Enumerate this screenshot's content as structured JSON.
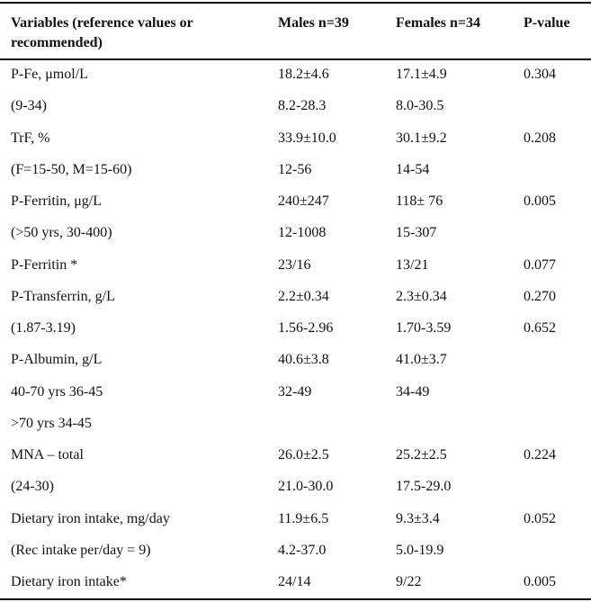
{
  "headers": {
    "variables": "Variables (reference values or recommended)",
    "males": "Males n=39",
    "females": "Females n=34",
    "pvalue": "P-value"
  },
  "rows": [
    {
      "variable": "P-Fe, μmol/L",
      "males": "18.2±4.6",
      "females": "17.1±4.9",
      "pvalue": "0.304"
    },
    {
      "variable": "(9-34)",
      "males": "8.2-28.3",
      "females": "8.0-30.5",
      "pvalue": ""
    },
    {
      "variable": "TrF, %",
      "males": "33.9±10.0",
      "females": "30.1±9.2",
      "pvalue": "0.208"
    },
    {
      "variable": "(F=15-50, M=15-60)",
      "males": "12-56",
      "females": "14-54",
      "pvalue": ""
    },
    {
      "variable": "P-Ferritin, μg/L",
      "males": "240±247",
      "females": "118± 76",
      "pvalue": "0.005"
    },
    {
      "variable": "(>50 yrs, 30-400)",
      "males": "12-1008",
      "females": "15-307",
      "pvalue": ""
    },
    {
      "variable": "P-Ferritin *",
      "males": "23/16",
      "females": "13/21",
      "pvalue": "0.077"
    },
    {
      "variable": "P-Transferrin, g/L",
      "males": "2.2±0.34",
      "females": "2.3±0.34",
      "pvalue": "0.270"
    },
    {
      "variable": "(1.87-3.19)",
      "males": "1.56-2.96",
      "females": "1.70-3.59",
      "pvalue": "0.652"
    },
    {
      "variable": "P-Albumin, g/L",
      "males": "40.6±3.8",
      "females": "41.0±3.7",
      "pvalue": ""
    },
    {
      "variable": "40-70 yrs 36-45",
      "males": "32-49",
      "females": "34-49",
      "pvalue": ""
    },
    {
      "variable": ">70 yrs 34-45",
      "males": "",
      "females": "",
      "pvalue": ""
    },
    {
      "variable": "MNA – total",
      "males": "26.0±2.5",
      "females": "25.2±2.5",
      "pvalue": "0.224"
    },
    {
      "variable": "(24-30)",
      "males": "21.0-30.0",
      "females": "17.5-29.0",
      "pvalue": ""
    },
    {
      "variable": "Dietary iron intake, mg/day",
      "males": "11.9±6.5",
      "females": "9.3±3.4",
      "pvalue": "0.052"
    },
    {
      "variable": "(Rec intake per/day = 9)",
      "males": "4.2-37.0",
      "females": "5.0-19.9",
      "pvalue": ""
    },
    {
      "variable": "Dietary iron intake*",
      "males": "24/14",
      "females": "9/22",
      "pvalue": "0.005"
    }
  ]
}
